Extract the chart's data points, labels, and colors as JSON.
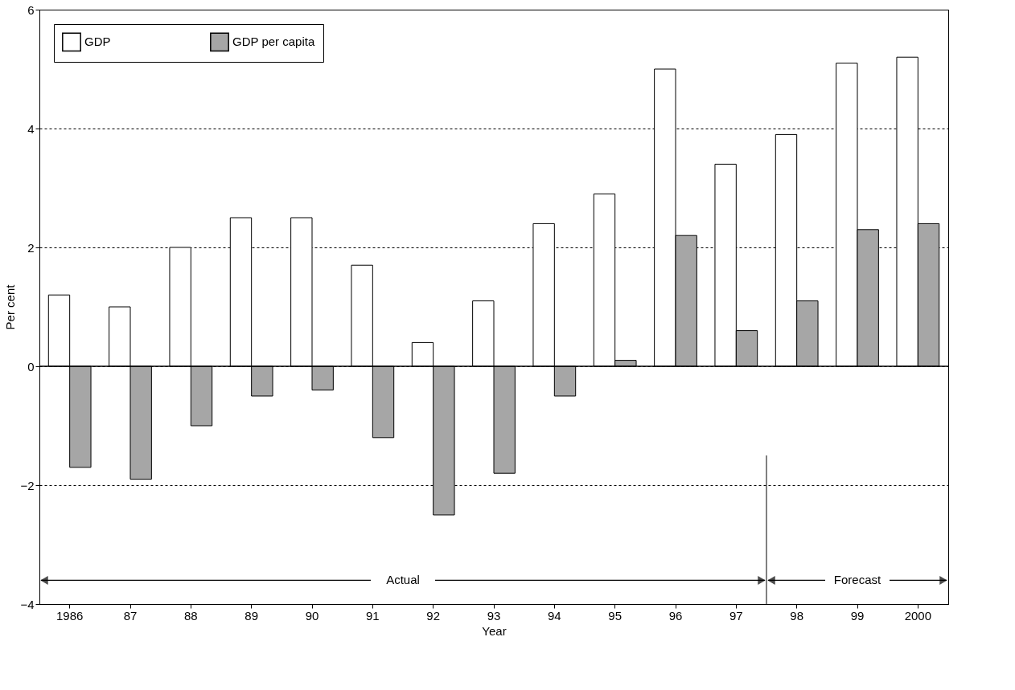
{
  "chart_data": {
    "type": "bar",
    "xlabel": "Year",
    "ylabel": "Per cent",
    "categories": [
      "1986",
      "87",
      "88",
      "89",
      "90",
      "91",
      "92",
      "93",
      "94",
      "95",
      "96",
      "97",
      "98",
      "99",
      "2000"
    ],
    "series": [
      {
        "name": "GDP",
        "color": "#ffffff",
        "values": [
          1.2,
          1.0,
          2.0,
          2.5,
          2.5,
          1.7,
          0.4,
          1.1,
          2.4,
          2.9,
          5.0,
          3.4,
          3.9,
          5.1,
          5.2
        ]
      },
      {
        "name": "GDP per capita",
        "color": "#a6a6a6",
        "values": [
          -1.7,
          -1.9,
          -1.0,
          -0.5,
          -0.4,
          -1.2,
          -2.5,
          -1.8,
          -0.5,
          0.1,
          2.2,
          0.6,
          1.1,
          2.3,
          2.4
        ]
      }
    ],
    "ylim": [
      -4,
      6
    ],
    "yticks": [
      -4,
      -2,
      0,
      2,
      4,
      6
    ],
    "grid": "y",
    "legend": "top left",
    "ref_lines": [
      {
        "axis": "y",
        "value": 0
      }
    ],
    "annotations": [
      "Actual",
      "Forecast"
    ]
  }
}
